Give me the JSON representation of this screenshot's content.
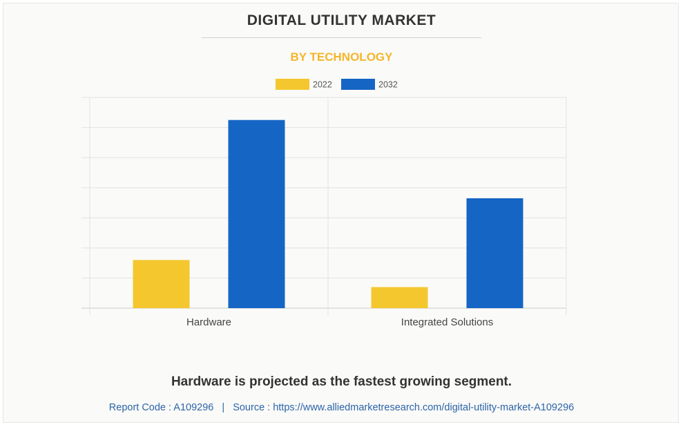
{
  "title": "DIGITAL UTILITY MARKET",
  "subtitle": "BY TECHNOLOGY",
  "tagline": "Hardware is projected as the fastest growing segment.",
  "footer": {
    "report_code": "Report Code : A109296",
    "separator": "|",
    "source": "Source : https://www.alliedmarketresearch.com/digital-utility-market-A109296"
  },
  "colors": {
    "series_2022": "#f5c72f",
    "series_2032": "#1565c4",
    "grid": "#e2e2e2",
    "axis": "#cccccc"
  },
  "chart_data": {
    "type": "bar",
    "categories": [
      "Hardware",
      "Integrated Solutions"
    ],
    "series": [
      {
        "name": "2022",
        "values": [
          1.6,
          0.7
        ]
      },
      {
        "name": "2032",
        "values": [
          6.25,
          3.65
        ]
      }
    ],
    "ylim": [
      0,
      7
    ],
    "grid": true,
    "legend": "top-center",
    "xlabel": "",
    "ylabel": ""
  }
}
